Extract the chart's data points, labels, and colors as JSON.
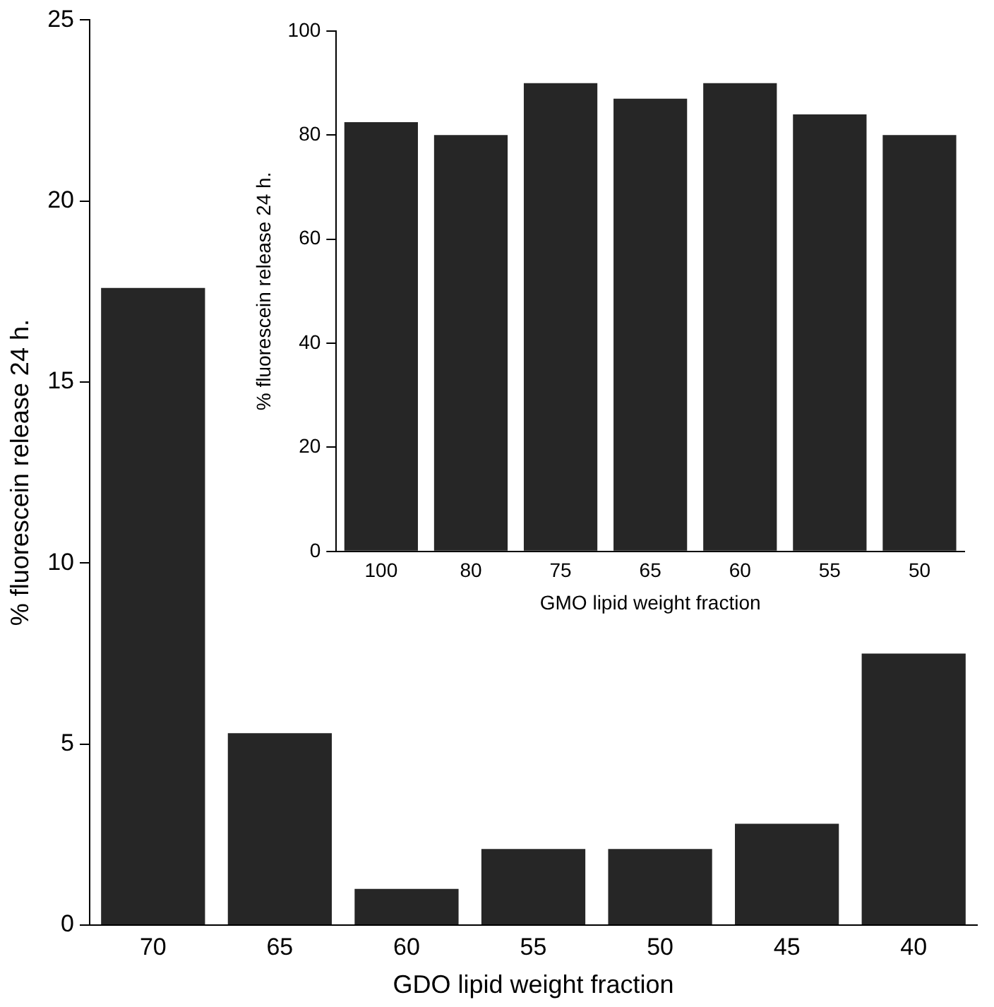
{
  "chart_data": [
    {
      "type": "bar",
      "xlabel": "GDO lipid weight fraction",
      "ylabel": "% fluorescein release 24 h.",
      "categories": [
        "70",
        "65",
        "60",
        "55",
        "50",
        "45",
        "40"
      ],
      "values": [
        17.6,
        5.3,
        1.0,
        2.1,
        2.1,
        2.8,
        7.5
      ],
      "color": "#262626",
      "ylim": [
        0,
        25
      ],
      "yticks": [
        0,
        5,
        10,
        15,
        20,
        25
      ]
    },
    {
      "type": "bar",
      "xlabel": "GMO lipid weight fraction",
      "ylabel": "% fluorescein release 24 h.",
      "categories": [
        "100",
        "80",
        "75",
        "65",
        "60",
        "55",
        "50"
      ],
      "values": [
        82.5,
        80,
        90,
        87,
        90,
        84,
        80
      ],
      "color": "#262626",
      "ylim": [
        0,
        100
      ],
      "yticks": [
        0,
        20,
        40,
        60,
        80,
        100
      ]
    }
  ]
}
